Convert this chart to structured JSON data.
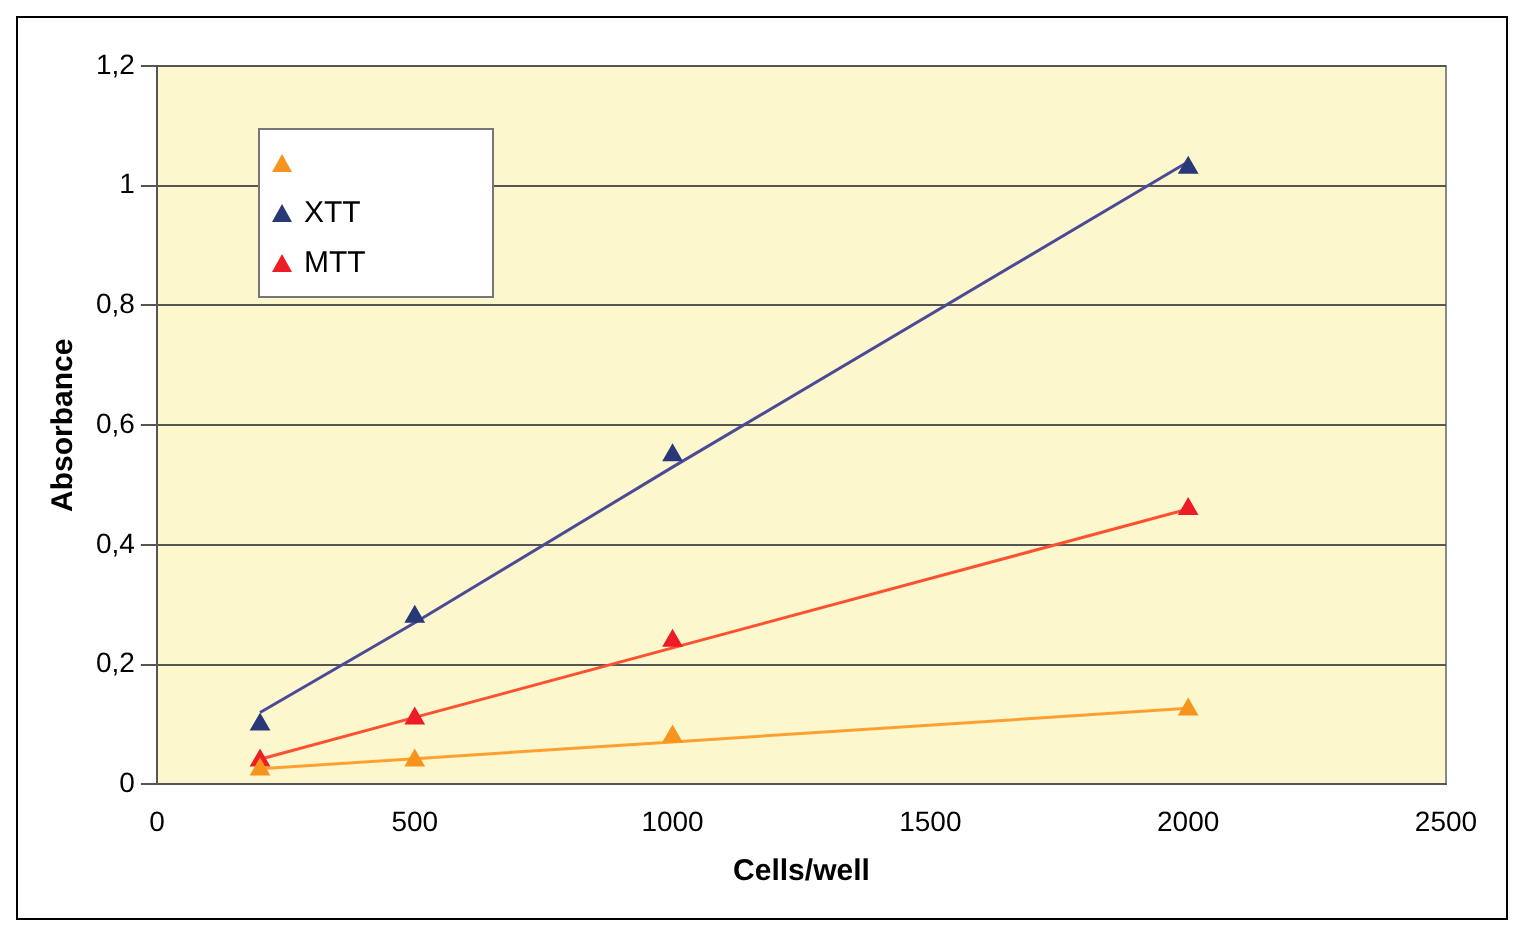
{
  "chart_data": {
    "type": "scatter",
    "xlabel": "Cells/well",
    "ylabel": "Absorbance",
    "x": [
      200,
      500,
      1000,
      2000
    ],
    "xlim": [
      0,
      2500
    ],
    "xticks": [
      0,
      500,
      1000,
      1500,
      2000,
      2500
    ],
    "ylim": [
      0,
      1.2
    ],
    "yticks": [
      0,
      {
        "value": 0.2,
        "label": "0,2"
      },
      {
        "value": 0.4,
        "label": "0,4"
      },
      {
        "value": 0.6,
        "label": "0,6"
      },
      {
        "value": 0.8,
        "label": "0,8"
      },
      1,
      {
        "value": 1.2,
        "label": "1,2"
      }
    ],
    "grid": "y",
    "legend": "top left",
    "marker": "triangle",
    "series": [
      {
        "color": "#f7941d",
        "values": [
          0.025,
          0.04,
          0.08,
          0.125
        ]
      },
      {
        "name": "XTT",
        "color": "#283878",
        "values": [
          0.1,
          0.28,
          0.55,
          1.03
        ]
      },
      {
        "name": "MTT",
        "color": "#ee1c25",
        "values": [
          0.04,
          0.11,
          0.24,
          0.46
        ]
      },
      {
        "type": "line",
        "marker": "none",
        "color": "#ffa030",
        "values": [
          0.026,
          0.043,
          0.071,
          0.127
        ]
      },
      {
        "type": "line",
        "marker": "none",
        "color": "#4a4a96",
        "values": [
          0.12,
          0.27,
          0.53,
          1.04
        ]
      },
      {
        "type": "line",
        "marker": "none",
        "color": "#ff5030",
        "values": [
          0.042,
          0.112,
          0.228,
          0.46
        ]
      }
    ]
  }
}
